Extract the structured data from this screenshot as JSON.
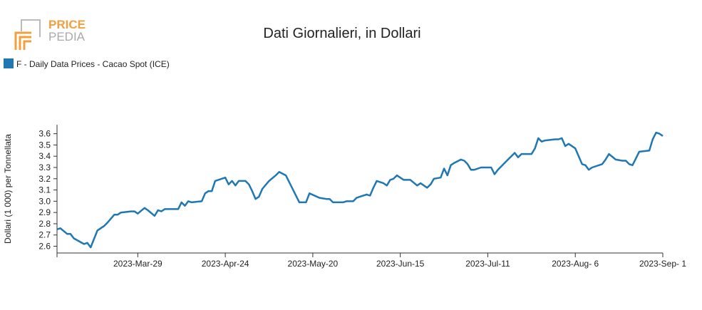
{
  "logo": {
    "line1": "PRICE",
    "line2": "PEDIA"
  },
  "chart_data": {
    "type": "line",
    "title": "Dati Giornalieri, in Dollari",
    "y_label": "Dollari (1 000) per Tonnellata",
    "legend": "top-left",
    "x": [
      "2023-03-05",
      "2023-03-06",
      "2023-03-08",
      "2023-03-09",
      "2023-03-10",
      "2023-03-13",
      "2023-03-14",
      "2023-03-15",
      "2023-03-17",
      "2023-03-19",
      "2023-03-20",
      "2023-03-22",
      "2023-03-23",
      "2023-03-24",
      "2023-03-27",
      "2023-03-28",
      "2023-03-29",
      "2023-03-31",
      "2023-04-01",
      "2023-04-03",
      "2023-04-04",
      "2023-04-05",
      "2023-04-06",
      "2023-04-10",
      "2023-04-11",
      "2023-04-12",
      "2023-04-13",
      "2023-04-14",
      "2023-04-17",
      "2023-04-18",
      "2023-04-19",
      "2023-04-20",
      "2023-04-21",
      "2023-04-24",
      "2023-04-25",
      "2023-04-26",
      "2023-04-27",
      "2023-04-28",
      "2023-04-30",
      "2023-05-01",
      "2023-05-02",
      "2023-05-03",
      "2023-05-04",
      "2023-05-05",
      "2023-05-07",
      "2023-05-09",
      "2023-05-10",
      "2023-05-12",
      "2023-05-13",
      "2023-05-16",
      "2023-05-17",
      "2023-05-18",
      "2023-05-19",
      "2023-05-22",
      "2023-05-24",
      "2023-05-25",
      "2023-05-26",
      "2023-05-29",
      "2023-05-30",
      "2023-06-01",
      "2023-06-02",
      "2023-06-05",
      "2023-06-06",
      "2023-06-07",
      "2023-06-08",
      "2023-06-10",
      "2023-06-11",
      "2023-06-12",
      "2023-06-13",
      "2023-06-14",
      "2023-06-16",
      "2023-06-18",
      "2023-06-20",
      "2023-06-21",
      "2023-06-23",
      "2023-06-24",
      "2023-06-25",
      "2023-06-27",
      "2023-06-28",
      "2023-06-29",
      "2023-06-30",
      "2023-07-01",
      "2023-07-03",
      "2023-07-04",
      "2023-07-05",
      "2023-07-06",
      "2023-07-07",
      "2023-07-09",
      "2023-07-12",
      "2023-07-13",
      "2023-07-14",
      "2023-07-17",
      "2023-07-18",
      "2023-07-19",
      "2023-07-20",
      "2023-07-21",
      "2023-07-24",
      "2023-07-25",
      "2023-07-26",
      "2023-07-27",
      "2023-07-28",
      "2023-07-31",
      "2023-08-01",
      "2023-08-02",
      "2023-08-03",
      "2023-08-04",
      "2023-08-06",
      "2023-08-08",
      "2023-08-09",
      "2023-08-10",
      "2023-08-11",
      "2023-08-14",
      "2023-08-15",
      "2023-08-16",
      "2023-08-18",
      "2023-08-20",
      "2023-08-21",
      "2023-08-22",
      "2023-08-23",
      "2023-08-25",
      "2023-08-28",
      "2023-08-29",
      "2023-08-30",
      "2023-08-31",
      "2023-09-01"
    ],
    "series": [
      {
        "name": "F - Daily Data Prices - Cacao Spot (ICE)",
        "color": "#1f77b4",
        "values": [
          2.75,
          2.76,
          2.71,
          2.71,
          2.67,
          2.62,
          2.63,
          2.59,
          2.74,
          2.78,
          2.81,
          2.88,
          2.88,
          2.9,
          2.91,
          2.91,
          2.89,
          2.94,
          2.92,
          2.87,
          2.92,
          2.91,
          2.93,
          2.93,
          2.99,
          2.96,
          3.0,
          2.99,
          3.0,
          3.07,
          3.09,
          3.09,
          3.18,
          3.21,
          3.15,
          3.18,
          3.14,
          3.18,
          3.18,
          3.15,
          3.09,
          3.02,
          3.04,
          3.11,
          3.18,
          3.23,
          3.26,
          3.23,
          3.17,
          2.99,
          2.99,
          2.99,
          3.07,
          3.03,
          3.02,
          3.02,
          2.99,
          2.99,
          3.0,
          3.0,
          3.03,
          3.06,
          3.05,
          3.12,
          3.18,
          3.16,
          3.14,
          3.19,
          3.2,
          3.23,
          3.19,
          3.19,
          3.14,
          3.16,
          3.12,
          3.15,
          3.2,
          3.21,
          3.29,
          3.23,
          3.32,
          3.34,
          3.37,
          3.36,
          3.33,
          3.28,
          3.28,
          3.3,
          3.3,
          3.24,
          3.28,
          3.37,
          3.4,
          3.43,
          3.39,
          3.42,
          3.42,
          3.47,
          3.56,
          3.53,
          3.54,
          3.55,
          3.55,
          3.56,
          3.49,
          3.51,
          3.47,
          3.33,
          3.32,
          3.28,
          3.3,
          3.33,
          3.37,
          3.42,
          3.37,
          3.36,
          3.36,
          3.33,
          3.32,
          3.44,
          3.45,
          3.55,
          3.61,
          3.6,
          3.58
        ]
      }
    ],
    "xlim": [
      "2023-03-05",
      "2023-09-01"
    ],
    "xticks": [
      {
        "value": "2023-03-29",
        "label": "2023-Mar-29"
      },
      {
        "value": "2023-04-24",
        "label": "2023-Apr-24"
      },
      {
        "value": "2023-05-20",
        "label": "2023-May-20"
      },
      {
        "value": "2023-06-15",
        "label": "2023-Jun-15"
      },
      {
        "value": "2023-07-11",
        "label": "2023-Jul-11"
      },
      {
        "value": "2023-08-06",
        "label": "2023-Aug- 6"
      },
      {
        "value": "2023-09-01",
        "label": "2023-Sep- 1"
      }
    ],
    "ylim": [
      2.54,
      3.68
    ],
    "yticks": [
      2.6,
      2.7,
      2.8,
      2.9,
      {
        "value": 3,
        "label": "3.0"
      },
      3.1,
      3.2,
      3.3,
      3.4,
      3.5,
      3.6
    ],
    "grid": false
  }
}
